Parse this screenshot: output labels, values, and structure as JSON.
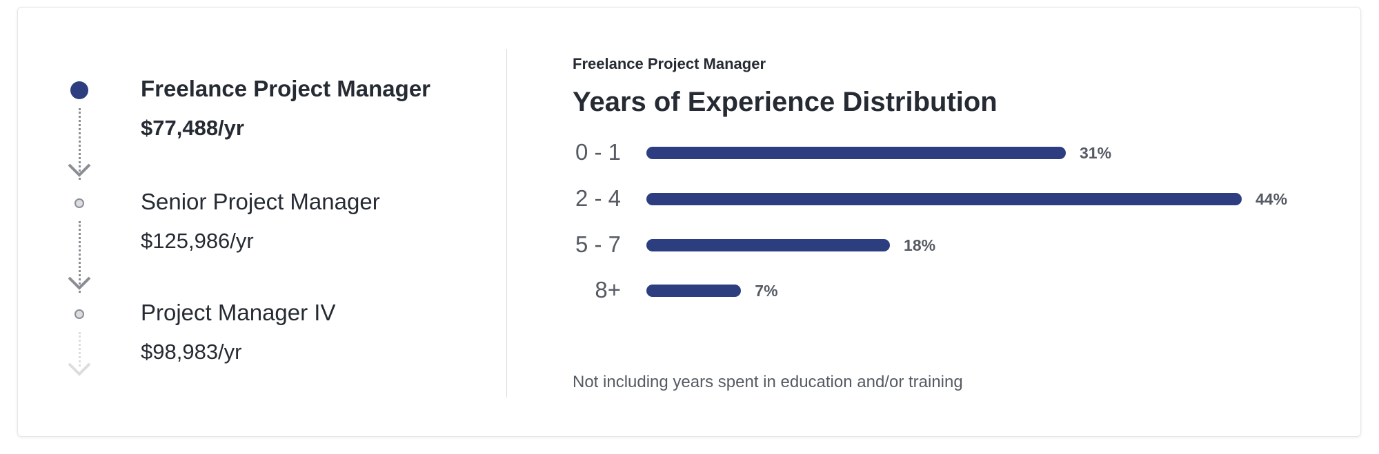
{
  "career_path": [
    {
      "title": "Freelance Project Manager",
      "salary": "$77,488/yr",
      "current": true
    },
    {
      "title": "Senior Project Manager",
      "salary": "$125,986/yr",
      "current": false
    },
    {
      "title": "Project Manager IV",
      "salary": "$98,983/yr",
      "current": false
    }
  ],
  "colors": {
    "accent": "#2c3e80",
    "muted": "#8a8d93"
  },
  "chart_data": {
    "type": "bar",
    "orientation": "horizontal",
    "subtitle": "Freelance Project Manager",
    "title": "Years of Experience Distribution",
    "categories": [
      "0 - 1",
      "2 - 4",
      "5 - 7",
      "8+"
    ],
    "values": [
      31,
      44,
      18,
      7
    ],
    "value_labels": [
      "31%",
      "44%",
      "18%",
      "7%"
    ],
    "unit": "%",
    "footnote": "Not including years spent in education and/or training",
    "grid": false
  }
}
